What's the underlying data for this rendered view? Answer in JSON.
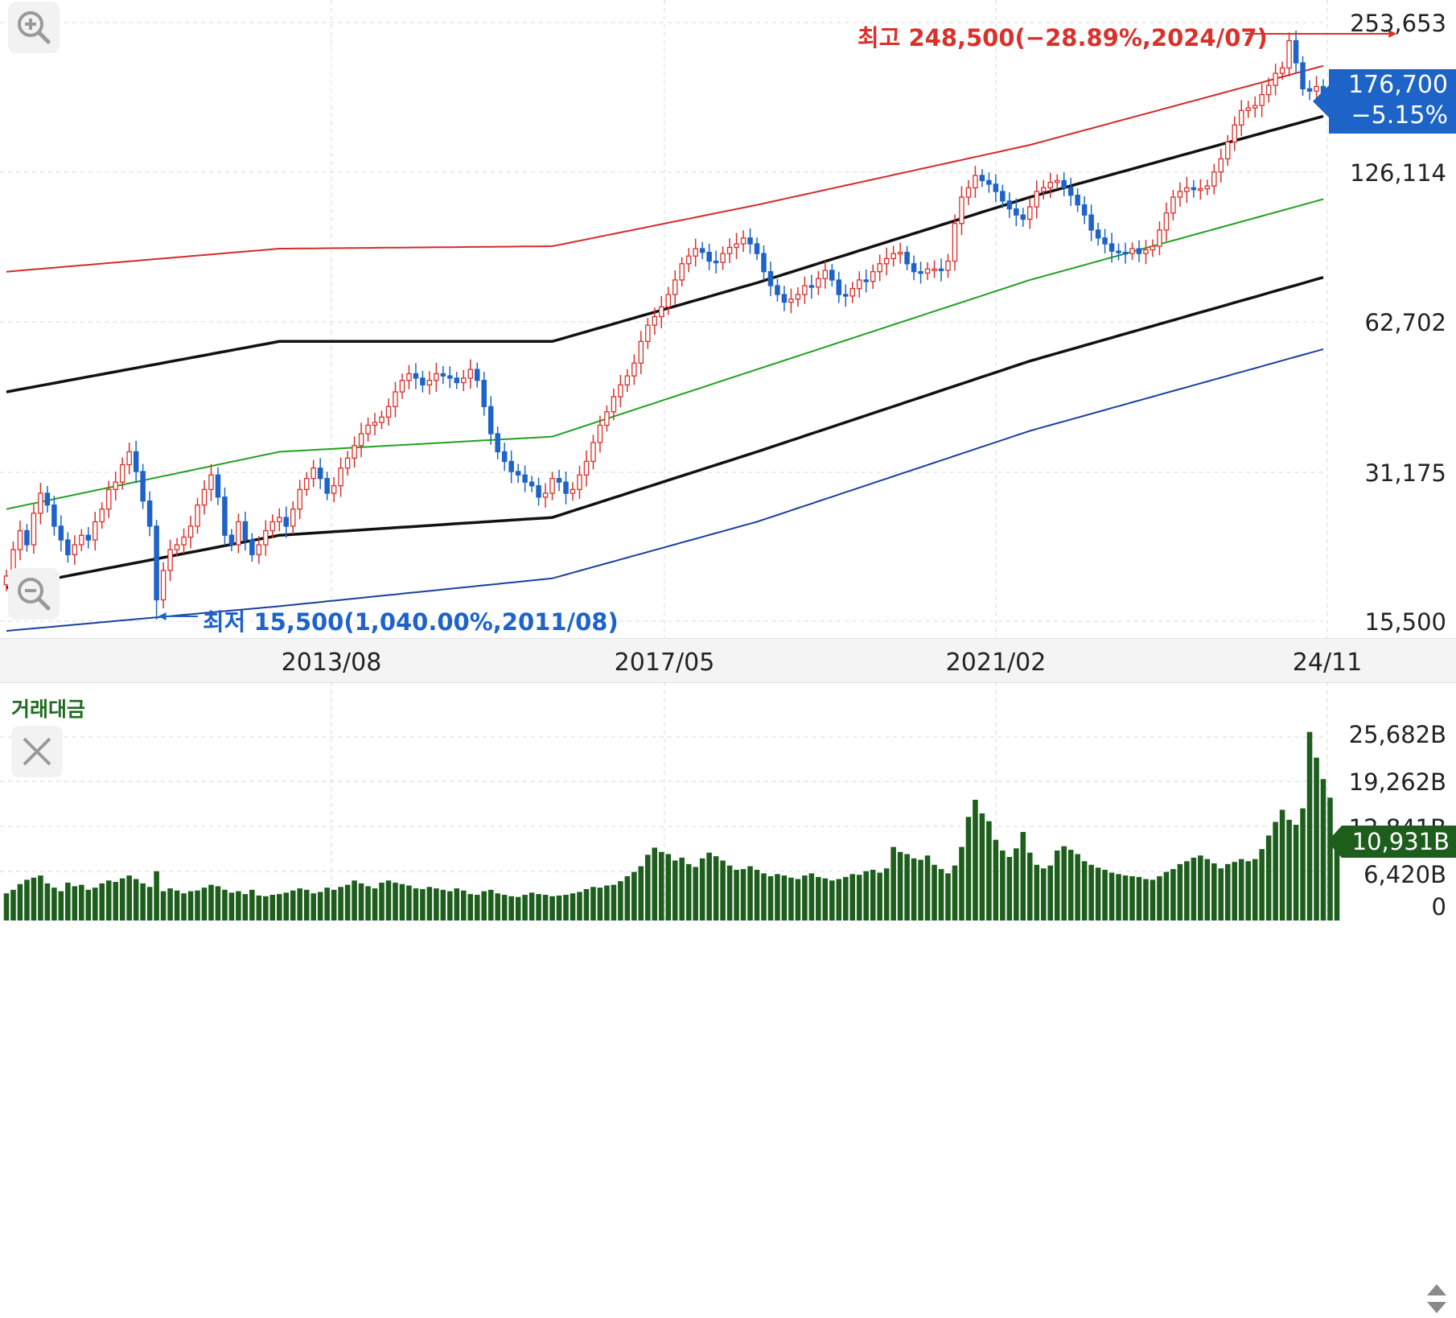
{
  "price_chart": {
    "y_ticks": [
      "253,653",
      "126,114",
      "62,702",
      "31,175",
      "15,500"
    ],
    "x_ticks": [
      "2013/08",
      "2017/05",
      "2021/02",
      "24/11"
    ],
    "high_annotation": "최고 248,500(−28.89%,2024/07)",
    "low_annotation": "최저 15,500(1,040.00%,2011/08)",
    "current_price": "176,700",
    "current_change": "−5.15%",
    "colors": {
      "up": "#d9312b",
      "down": "#1d63c8",
      "upper_band": "#d42a2a",
      "lower_band": "#1b3fa0",
      "mid_band": "#22a022",
      "inner_band": "#111111"
    }
  },
  "volume_chart": {
    "title": "거래대금",
    "y_ticks": [
      "25,682B",
      "19,262B",
      "12,841B",
      "6,420B",
      "0"
    ],
    "current_value": "10,931B",
    "bar_color": "#1d5e1d"
  },
  "icons": {
    "zoom_in": "zoom-in-icon",
    "zoom_out": "zoom-out-icon",
    "close": "close-icon",
    "scroll": "up-down-arrows-icon"
  },
  "chart_data": [
    {
      "type": "candlestick",
      "title": "",
      "scale": "log",
      "ylim": [
        15500,
        253653
      ],
      "x_ticks": [
        "2013/08",
        "2017/05",
        "2021/02",
        "24/11"
      ],
      "annotations": [
        "최고 248,500(−28.89%,2024/07)",
        "최저 15,500(1,040.00%,2011/08)"
      ],
      "close_series": [
        19000,
        21500,
        23500,
        22000,
        25500,
        28000,
        26500,
        24000,
        22500,
        21000,
        22000,
        23000,
        22500,
        24500,
        26000,
        28500,
        29500,
        32000,
        34000,
        31000,
        27000,
        24000,
        17000,
        19500,
        21500,
        22000,
        22800,
        24000,
        26500,
        28500,
        30500,
        27500,
        23000,
        22000,
        24500,
        22500,
        21000,
        22000,
        23500,
        24500,
        25000,
        24000,
        26000,
        28500,
        30000,
        31500,
        30000,
        28000,
        29000,
        31500,
        33000,
        35000,
        37000,
        38500,
        39000,
        40000,
        42000,
        45000,
        47500,
        49000,
        48000,
        46500,
        47500,
        49000,
        48500,
        48000,
        47000,
        48000,
        50000,
        47500,
        42000,
        37000,
        34000,
        32500,
        31000,
        30500,
        29500,
        29000,
        27500,
        28000,
        30000,
        29500,
        28000,
        28500,
        30500,
        32500,
        35500,
        38500,
        41000,
        44000,
        46500,
        48500,
        51500,
        57000,
        61500,
        64000,
        67000,
        71000,
        76000,
        82000,
        85000,
        88000,
        86500,
        83000,
        82500,
        86000,
        88500,
        90000,
        92500,
        90000,
        86000,
        79000,
        74000,
        71000,
        68500,
        69500,
        71000,
        74000,
        73500,
        76500,
        79500,
        76000,
        71000,
        70500,
        73000,
        76000,
        75500,
        79000,
        82000,
        84000,
        86000,
        86500,
        82000,
        79000,
        78500,
        80000,
        80000,
        79500,
        83000,
        99000,
        112000,
        117000,
        124000,
        121000,
        119000,
        115000,
        110000,
        106000,
        103000,
        101000,
        107000,
        115000,
        117000,
        120000,
        121000,
        117000,
        113000,
        108000,
        103000,
        96000,
        92500,
        90000,
        87000,
        86500,
        86000,
        88000,
        86000,
        87500,
        89000,
        96000,
        104000,
        112000,
        115000,
        117000,
        116000,
        116500,
        118000,
        126000,
        134000,
        145000,
        157000,
        168000,
        170000,
        172000,
        181000,
        189000,
        200000,
        205000,
        233000,
        210000,
        186000,
        184000,
        188000,
        176700
      ],
      "upper_band": [
        {
          "x": 0,
          "y": 79000
        },
        {
          "x": 40,
          "y": 88000
        },
        {
          "x": 80,
          "y": 89000
        },
        {
          "x": 110,
          "y": 108000
        },
        {
          "x": 150,
          "y": 143000
        },
        {
          "x": 200,
          "y": 220000
        },
        {
          "x": 212,
          "y": 253000
        }
      ],
      "inner_upper_band": [
        {
          "x": 0,
          "y": 45000
        },
        {
          "x": 40,
          "y": 57000
        },
        {
          "x": 80,
          "y": 57000
        },
        {
          "x": 110,
          "y": 75000
        },
        {
          "x": 150,
          "y": 112000
        },
        {
          "x": 200,
          "y": 174000
        },
        {
          "x": 212,
          "y": 202000
        }
      ],
      "middle_band": [
        {
          "x": 0,
          "y": 26000
        },
        {
          "x": 40,
          "y": 34000
        },
        {
          "x": 80,
          "y": 36500
        },
        {
          "x": 110,
          "y": 50000
        },
        {
          "x": 150,
          "y": 76000
        },
        {
          "x": 200,
          "y": 118000
        },
        {
          "x": 212,
          "y": 137000
        }
      ],
      "inner_lower_band": [
        {
          "x": 0,
          "y": 18000
        },
        {
          "x": 40,
          "y": 23000
        },
        {
          "x": 80,
          "y": 25000
        },
        {
          "x": 110,
          "y": 34000
        },
        {
          "x": 150,
          "y": 52000
        },
        {
          "x": 200,
          "y": 82000
        },
        {
          "x": 212,
          "y": 93500
        }
      ],
      "lower_band": [
        {
          "x": 0,
          "y": 14700
        },
        {
          "x": 40,
          "y": 16500
        },
        {
          "x": 80,
          "y": 18800
        },
        {
          "x": 110,
          "y": 24500
        },
        {
          "x": 150,
          "y": 37500
        },
        {
          "x": 200,
          "y": 58500
        },
        {
          "x": 212,
          "y": 67000
        }
      ]
    },
    {
      "type": "bar",
      "title": "거래대금",
      "ylim": [
        0,
        25682
      ],
      "y_ticks": [
        "25,682B",
        "19,262B",
        "12,841B",
        "6,420B",
        "0"
      ],
      "values": [
        3800,
        4300,
        5100,
        5700,
        6000,
        6300,
        5200,
        4600,
        4100,
        5300,
        4800,
        5000,
        4300,
        4600,
        5200,
        5600,
        5400,
        5900,
        6300,
        5800,
        5200,
        4700,
        6900,
        4100,
        4500,
        4200,
        3800,
        4100,
        4200,
        4600,
        5000,
        4800,
        4300,
        3900,
        4100,
        3700,
        4300,
        3500,
        3400,
        3600,
        3700,
        3900,
        4200,
        4500,
        4300,
        3800,
        4000,
        4600,
        4300,
        4700,
        5000,
        5600,
        5200,
        4800,
        4500,
        5300,
        5600,
        5300,
        5100,
        4900,
        4500,
        4400,
        4700,
        4500,
        4300,
        4100,
        4500,
        4200,
        3700,
        3600,
        4100,
        4300,
        3800,
        3600,
        3400,
        3300,
        3600,
        3900,
        3700,
        3600,
        3400,
        3500,
        3600,
        3800,
        4000,
        4400,
        4700,
        4600,
        4900,
        5000,
        5500,
        6200,
        6800,
        7600,
        9200,
        10200,
        9600,
        9300,
        8400,
        8800,
        7900,
        7500,
        8700,
        9500,
        9000,
        8400,
        7700,
        7100,
        7200,
        7600,
        7100,
        6600,
        6200,
        6500,
        6300,
        6000,
        5800,
        6300,
        6600,
        6100,
        5900,
        5600,
        5800,
        6100,
        6500,
        6400,
        6900,
        7100,
        6700,
        7300,
        10300,
        9600,
        9300,
        8700,
        8500,
        9100,
        7800,
        7200,
        6600,
        7700,
        10300,
        14500,
        16900,
        15000,
        13900,
        11300,
        9800,
        8900,
        10100,
        12400,
        9500,
        7800,
        7300,
        7700,
        9800,
        10400,
        9900,
        9300,
        8300,
        7800,
        7400,
        7100,
        6700,
        6500,
        6300,
        6200,
        6100,
        5800,
        5700,
        6200,
        6800,
        7200,
        7900,
        8300,
        8800,
        9100,
        8600,
        8000,
        7300,
        7900,
        8200,
        8600,
        8300,
        8600,
        10000,
        11900,
        13800,
        15500,
        14100,
        13400,
        15700,
        26400,
        22800,
        19800,
        17200,
        10931
      ]
    }
  ]
}
